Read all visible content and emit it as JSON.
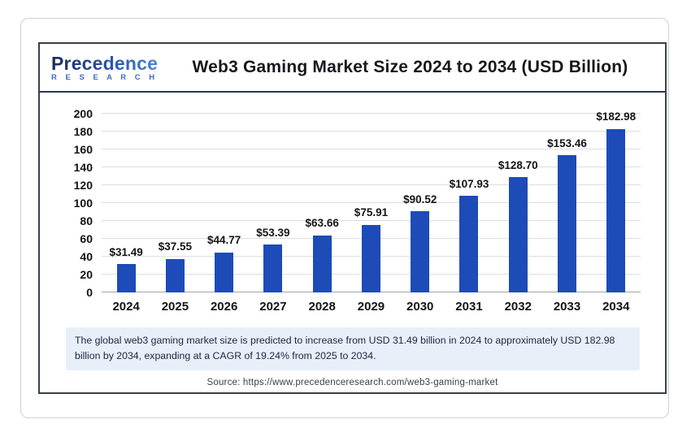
{
  "logo": {
    "brand": "Precedence",
    "sub": "R E S E A R C H"
  },
  "header": {
    "title": "Web3 Gaming Market Size 2024 to 2034 (USD Billion)"
  },
  "chart_data": {
    "type": "bar",
    "title": "Web3 Gaming Market Size 2024 to 2034 (USD Billion)",
    "categories": [
      "2024",
      "2025",
      "2026",
      "2027",
      "2028",
      "2029",
      "2030",
      "2031",
      "2032",
      "2033",
      "2034"
    ],
    "values": [
      31.49,
      37.55,
      44.77,
      53.39,
      63.66,
      75.91,
      90.52,
      107.93,
      128.7,
      153.46,
      182.98
    ],
    "bar_labels": [
      "$31.49",
      "$37.55",
      "$44.77",
      "$53.39",
      "$63.66",
      "$75.91",
      "$90.52",
      "$107.93",
      "$128.70",
      "$153.46",
      "$182.98"
    ],
    "xlabel": "",
    "ylabel": "",
    "ylim": [
      0,
      200
    ],
    "yticks": [
      0,
      20,
      40,
      60,
      80,
      100,
      120,
      140,
      160,
      180,
      200
    ],
    "grid": true,
    "legend": "none",
    "bar_color": "#1d4bb7"
  },
  "note": {
    "text": "The global web3 gaming market size is predicted to increase from USD 31.49 billion in 2024 to approximately USD 182.98 billion by 2034, expanding at a CAGR of 19.24% from 2025 to 2034."
  },
  "source": {
    "text": "Source: https://www.precedenceresearch.com/web3-gaming-market"
  }
}
